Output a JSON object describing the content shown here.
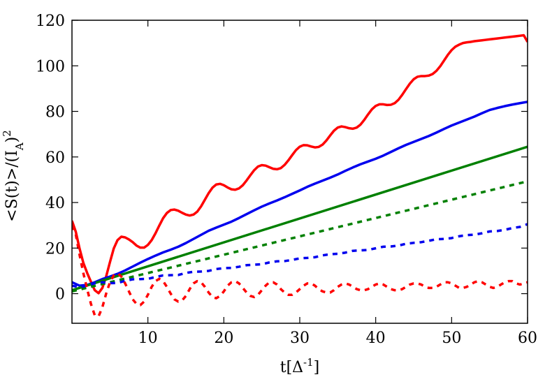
{
  "chart_data": {
    "type": "line",
    "title": "",
    "xlabel": "t[Δ^{-1}]",
    "xlabel_main": "t[Δ",
    "xlabel_sup": "-1",
    "xlabel_close": "]",
    "ylabel": "<S(t)>/(I_A)^2",
    "ylabel_parts": {
      "main": "<S(t)>/(I",
      "sub": "A",
      "close": ")",
      "sup": "2"
    },
    "xlim": [
      0,
      60
    ],
    "ylim": [
      -13,
      120
    ],
    "xticks": [
      10,
      20,
      30,
      40,
      50,
      60
    ],
    "yticks": [
      0,
      20,
      40,
      60,
      80,
      100,
      120
    ],
    "grid": false,
    "series": [
      {
        "color": "#ff0000",
        "dash": "solid",
        "x": [
          0,
          0.5,
          1,
          1.5,
          2,
          2.5,
          3,
          3.5,
          4,
          4.5,
          5,
          5.5,
          6,
          6.5,
          7,
          7.5,
          8,
          8.5,
          9,
          9.5,
          10,
          10.5,
          11,
          11.5,
          12,
          12.5,
          13,
          13.5,
          14,
          14.5,
          15,
          15.5,
          16,
          16.5,
          17,
          17.5,
          18,
          18.5,
          19,
          19.5,
          20,
          20.5,
          21,
          21.5,
          22,
          22.5,
          23,
          23.5,
          24,
          24.5,
          25,
          25.5,
          26,
          26.5,
          27,
          27.5,
          28,
          28.5,
          29,
          29.5,
          30,
          30.5,
          31,
          31.5,
          32,
          32.5,
          33,
          33.5,
          34,
          34.5,
          35,
          35.5,
          36,
          36.5,
          37,
          37.5,
          38,
          38.5,
          39,
          39.5,
          40,
          40.5,
          41,
          41.5,
          42,
          42.5,
          43,
          43.5,
          44,
          44.5,
          45,
          45.5,
          46,
          46.5,
          47,
          47.5,
          48,
          48.5,
          49,
          49.5,
          50,
          50.5,
          51,
          51.5,
          52,
          52.5,
          53,
          53.5,
          54,
          54.5,
          55,
          55.5,
          56,
          56.5,
          57,
          57.5,
          58,
          58.5,
          59,
          59.5,
          60
        ],
        "y": [
          32.0,
          27.2,
          19.8,
          13.5,
          9.1,
          5.2,
          1.5,
          0.2,
          2.5,
          7.5,
          13.8,
          19.8,
          23.5,
          25.0,
          24.7,
          23.8,
          22.6,
          21.1,
          20.2,
          20.2,
          21.4,
          23.5,
          26.5,
          29.9,
          33.1,
          35.4,
          36.7,
          36.9,
          36.4,
          35.5,
          34.7,
          34.3,
          34.7,
          36.0,
          38.3,
          41.2,
          44.1,
          46.5,
          47.9,
          48.2,
          47.6,
          46.6,
          45.8,
          45.6,
          46.2,
          47.6,
          49.7,
          52.0,
          54.2,
          55.8,
          56.4,
          56.2,
          55.5,
          54.8,
          54.6,
          55.1,
          56.5,
          58.5,
          60.8,
          63.0,
          64.5,
          65.2,
          65.1,
          64.6,
          64.2,
          64.4,
          65.4,
          67.2,
          69.4,
          71.5,
          72.9,
          73.4,
          73.1,
          72.6,
          72.4,
          72.9,
          74.2,
          76.3,
          78.7,
          80.9,
          82.4,
          83.1,
          83.1,
          82.8,
          82.9,
          83.6,
          85.1,
          87.3,
          89.8,
          92.2,
          94.1,
          95.2,
          95.5,
          95.5,
          95.7,
          96.4,
          97.8,
          99.8,
          102.3,
          104.8,
          106.9,
          108.4,
          109.3,
          110.0,
          110.3,
          110.5,
          110.8,
          111.0,
          111.2,
          111.4,
          111.6,
          111.8,
          112.0,
          112.2,
          112.4,
          112.6,
          112.8,
          113.0,
          113.2,
          113.4,
          110.5
        ]
      },
      {
        "color": "#0000ee",
        "dash": "solid",
        "x": [
          0,
          1,
          2,
          3,
          4,
          5,
          6,
          7,
          8,
          9,
          10,
          11,
          12,
          13,
          14,
          15,
          16,
          17,
          18,
          19,
          20,
          21,
          22,
          23,
          24,
          25,
          26,
          27,
          28,
          29,
          30,
          31,
          32,
          33,
          34,
          35,
          36,
          37,
          38,
          39,
          40,
          41,
          42,
          43,
          44,
          45,
          46,
          47,
          48,
          49,
          50,
          51,
          52,
          53,
          54,
          55,
          56,
          57,
          58,
          59,
          60
        ],
        "y": [
          5.0,
          3.5,
          3.8,
          5.0,
          6.4,
          7.5,
          8.7,
          10.2,
          11.9,
          13.6,
          15.2,
          16.7,
          18.1,
          19.3,
          20.6,
          22.2,
          24.0,
          25.8,
          27.6,
          29.0,
          30.3,
          31.6,
          33.2,
          34.9,
          36.6,
          38.2,
          39.6,
          40.9,
          42.3,
          43.8,
          45.3,
          46.9,
          48.3,
          49.6,
          50.9,
          52.3,
          53.9,
          55.4,
          56.8,
          58.0,
          59.2,
          60.6,
          62.2,
          63.8,
          65.3,
          66.6,
          67.9,
          69.2,
          70.7,
          72.3,
          73.8,
          75.1,
          76.4,
          77.7,
          79.2,
          80.6,
          81.5,
          82.3,
          83.0,
          83.6,
          84.2
        ]
      },
      {
        "color": "#008000",
        "dash": "solid",
        "x": [
          0,
          60
        ],
        "y": [
          1.5,
          64.5
        ]
      },
      {
        "color": "#008000",
        "dash": "dashed",
        "x": [
          0,
          60
        ],
        "y": [
          1.0,
          49.3
        ]
      },
      {
        "color": "#0000ee",
        "dash": "dashed",
        "x": [
          0,
          1,
          2,
          3,
          4,
          5,
          6,
          7,
          8,
          9,
          10,
          11,
          12,
          13,
          14,
          15,
          16,
          17,
          18,
          19,
          20,
          21,
          22,
          23,
          24,
          25,
          26,
          27,
          28,
          29,
          30,
          31,
          32,
          33,
          34,
          35,
          36,
          37,
          38,
          39,
          40,
          41,
          42,
          43,
          44,
          45,
          46,
          47,
          48,
          49,
          50,
          51,
          52,
          53,
          54,
          55,
          56,
          57,
          58,
          59,
          60
        ],
        "y": [
          3.5,
          2.8,
          3.5,
          4.6,
          5.0,
          4.6,
          4.7,
          5.6,
          6.3,
          6.4,
          6.5,
          7.3,
          8.0,
          8.1,
          8.2,
          9.1,
          9.6,
          9.7,
          10.0,
          10.8,
          11.2,
          11.3,
          11.8,
          12.5,
          12.7,
          12.9,
          13.7,
          14.2,
          14.3,
          14.8,
          15.5,
          15.7,
          16.0,
          16.8,
          17.3,
          17.5,
          18.0,
          18.8,
          19.0,
          19.2,
          19.9,
          20.6,
          20.7,
          21.1,
          21.9,
          22.3,
          22.6,
          23.2,
          23.9,
          24.0,
          24.4,
          25.2,
          25.7,
          25.9,
          26.5,
          27.3,
          27.5,
          28.0,
          28.8,
          29.3,
          30.5
        ]
      },
      {
        "color": "#ff0000",
        "dash": "dashed",
        "x": [
          0,
          0.5,
          1,
          1.5,
          2,
          2.5,
          3,
          3.5,
          4,
          4.5,
          5,
          5.5,
          6,
          6.5,
          7,
          7.5,
          8,
          8.5,
          9,
          9.5,
          10,
          10.5,
          11,
          11.5,
          12,
          12.5,
          13,
          13.5,
          14,
          14.5,
          15,
          15.5,
          16,
          16.5,
          17,
          17.5,
          18,
          18.5,
          19,
          19.5,
          20,
          20.5,
          21,
          21.5,
          22,
          22.5,
          23,
          23.5,
          24,
          24.5,
          25,
          25.5,
          26,
          26.5,
          27,
          27.5,
          28,
          28.5,
          29,
          29.5,
          30,
          30.5,
          31,
          31.5,
          32,
          32.5,
          33,
          33.5,
          34,
          34.5,
          35,
          35.5,
          36,
          36.5,
          37,
          37.5,
          38,
          38.5,
          39,
          39.5,
          40,
          40.5,
          41,
          41.5,
          42,
          42.5,
          43,
          43.5,
          44,
          44.5,
          45,
          45.5,
          46,
          46.5,
          47,
          47.5,
          48,
          48.5,
          49,
          49.5,
          50,
          50.5,
          51,
          51.5,
          52,
          52.5,
          53,
          53.5,
          54,
          54.5,
          55,
          55.5,
          56,
          56.5,
          57,
          57.5,
          58,
          58.5,
          59,
          59.5,
          60
        ],
        "y": [
          30.0,
          26.0,
          17.0,
          9.0,
          2.0,
          -4.5,
          -9.5,
          -10.0,
          -6.0,
          0.0,
          5.0,
          8.0,
          9.0,
          7.5,
          4.5,
          1.0,
          -2.5,
          -4.5,
          -5.0,
          -3.5,
          -0.5,
          3.0,
          5.5,
          6.5,
          5.5,
          3.0,
          0.0,
          -2.5,
          -3.5,
          -3.0,
          -1.0,
          2.0,
          4.5,
          5.5,
          5.0,
          3.0,
          0.5,
          -1.5,
          -2.0,
          -1.0,
          1.0,
          3.5,
          5.0,
          5.5,
          4.5,
          2.5,
          0.5,
          -1.0,
          -1.5,
          -0.5,
          1.5,
          3.5,
          5.0,
          5.0,
          4.0,
          2.0,
          0.5,
          -0.5,
          -0.5,
          0.5,
          2.0,
          3.5,
          4.5,
          4.5,
          3.5,
          2.0,
          1.0,
          0.5,
          0.5,
          1.5,
          3.0,
          4.0,
          4.5,
          4.0,
          3.0,
          2.0,
          1.5,
          1.5,
          2.0,
          3.0,
          4.0,
          4.5,
          4.0,
          3.0,
          2.0,
          1.5,
          1.5,
          2.0,
          3.0,
          4.0,
          4.5,
          4.5,
          4.0,
          3.0,
          2.5,
          2.5,
          3.0,
          4.0,
          5.0,
          5.0,
          4.5,
          3.5,
          2.5,
          2.5,
          3.0,
          4.0,
          5.0,
          5.5,
          5.0,
          4.0,
          3.0,
          2.5,
          3.0,
          4.0,
          5.0,
          5.5,
          5.5,
          4.5,
          4.0,
          4.5,
          5.0
        ]
      }
    ]
  }
}
